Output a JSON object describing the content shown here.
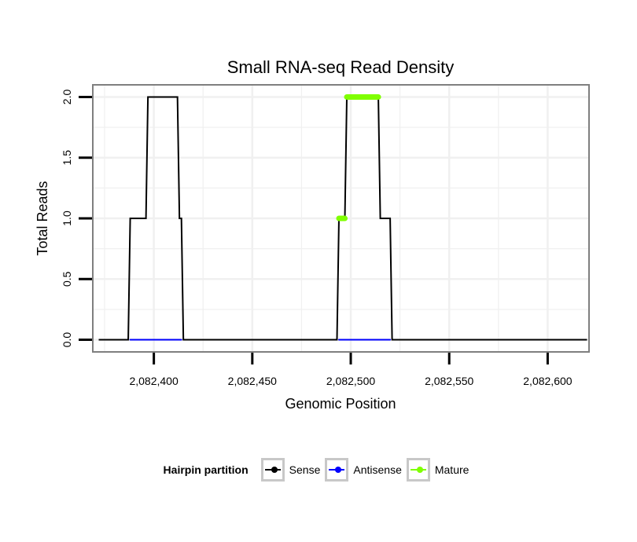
{
  "chart_data": {
    "type": "line",
    "title": "Small RNA-seq Read Density",
    "xlabel": "Genomic Position",
    "ylabel": "Total Reads",
    "xlim": [
      2082369,
      2082621
    ],
    "ylim": [
      -0.1,
      2.1
    ],
    "x_ticks": [
      2082400,
      2082450,
      2082500,
      2082550,
      2082600
    ],
    "x_tick_labels": [
      "2,082,400",
      "2,082,450",
      "2,082,500",
      "2,082,550",
      "2,082,600"
    ],
    "y_ticks": [
      0,
      0.5,
      1,
      1.5,
      2
    ],
    "y_tick_labels": [
      "0.0",
      "0.5",
      "1.0",
      "1.5",
      "2.0"
    ],
    "grid": true,
    "legend_position": "bottom",
    "series": [
      {
        "name": "Sense",
        "color": "#000000",
        "x": [
          2082372,
          2082387,
          2082388,
          2082396,
          2082397,
          2082412,
          2082413,
          2082414,
          2082415,
          2082493,
          2082494,
          2082497,
          2082498,
          2082514,
          2082515,
          2082520,
          2082521,
          2082620
        ],
        "y": [
          0,
          0,
          1,
          1,
          2,
          2,
          1,
          1,
          0,
          0,
          1,
          1,
          2,
          2,
          1,
          1,
          0,
          0
        ]
      },
      {
        "name": "Antisense",
        "color": "#0000ff",
        "x": [
          2082388,
          2082414,
          2082494,
          2082520
        ],
        "y": [
          0,
          0,
          0,
          0
        ],
        "segments": [
          [
            0,
            1
          ],
          [
            2,
            3
          ]
        ]
      },
      {
        "name": "Mature",
        "color": "#7fff00",
        "x": [
          2082494,
          2082497,
          2082498,
          2082514
        ],
        "y": [
          1,
          1,
          2,
          2
        ],
        "segments": [
          [
            0,
            1
          ],
          [
            2,
            3
          ]
        ]
      }
    ]
  },
  "legend": {
    "title": "Hairpin partition",
    "items": [
      {
        "label": "Sense",
        "color": "#000000"
      },
      {
        "label": "Antisense",
        "color": "#0000ff"
      },
      {
        "label": "Mature",
        "color": "#7fff00"
      }
    ]
  }
}
